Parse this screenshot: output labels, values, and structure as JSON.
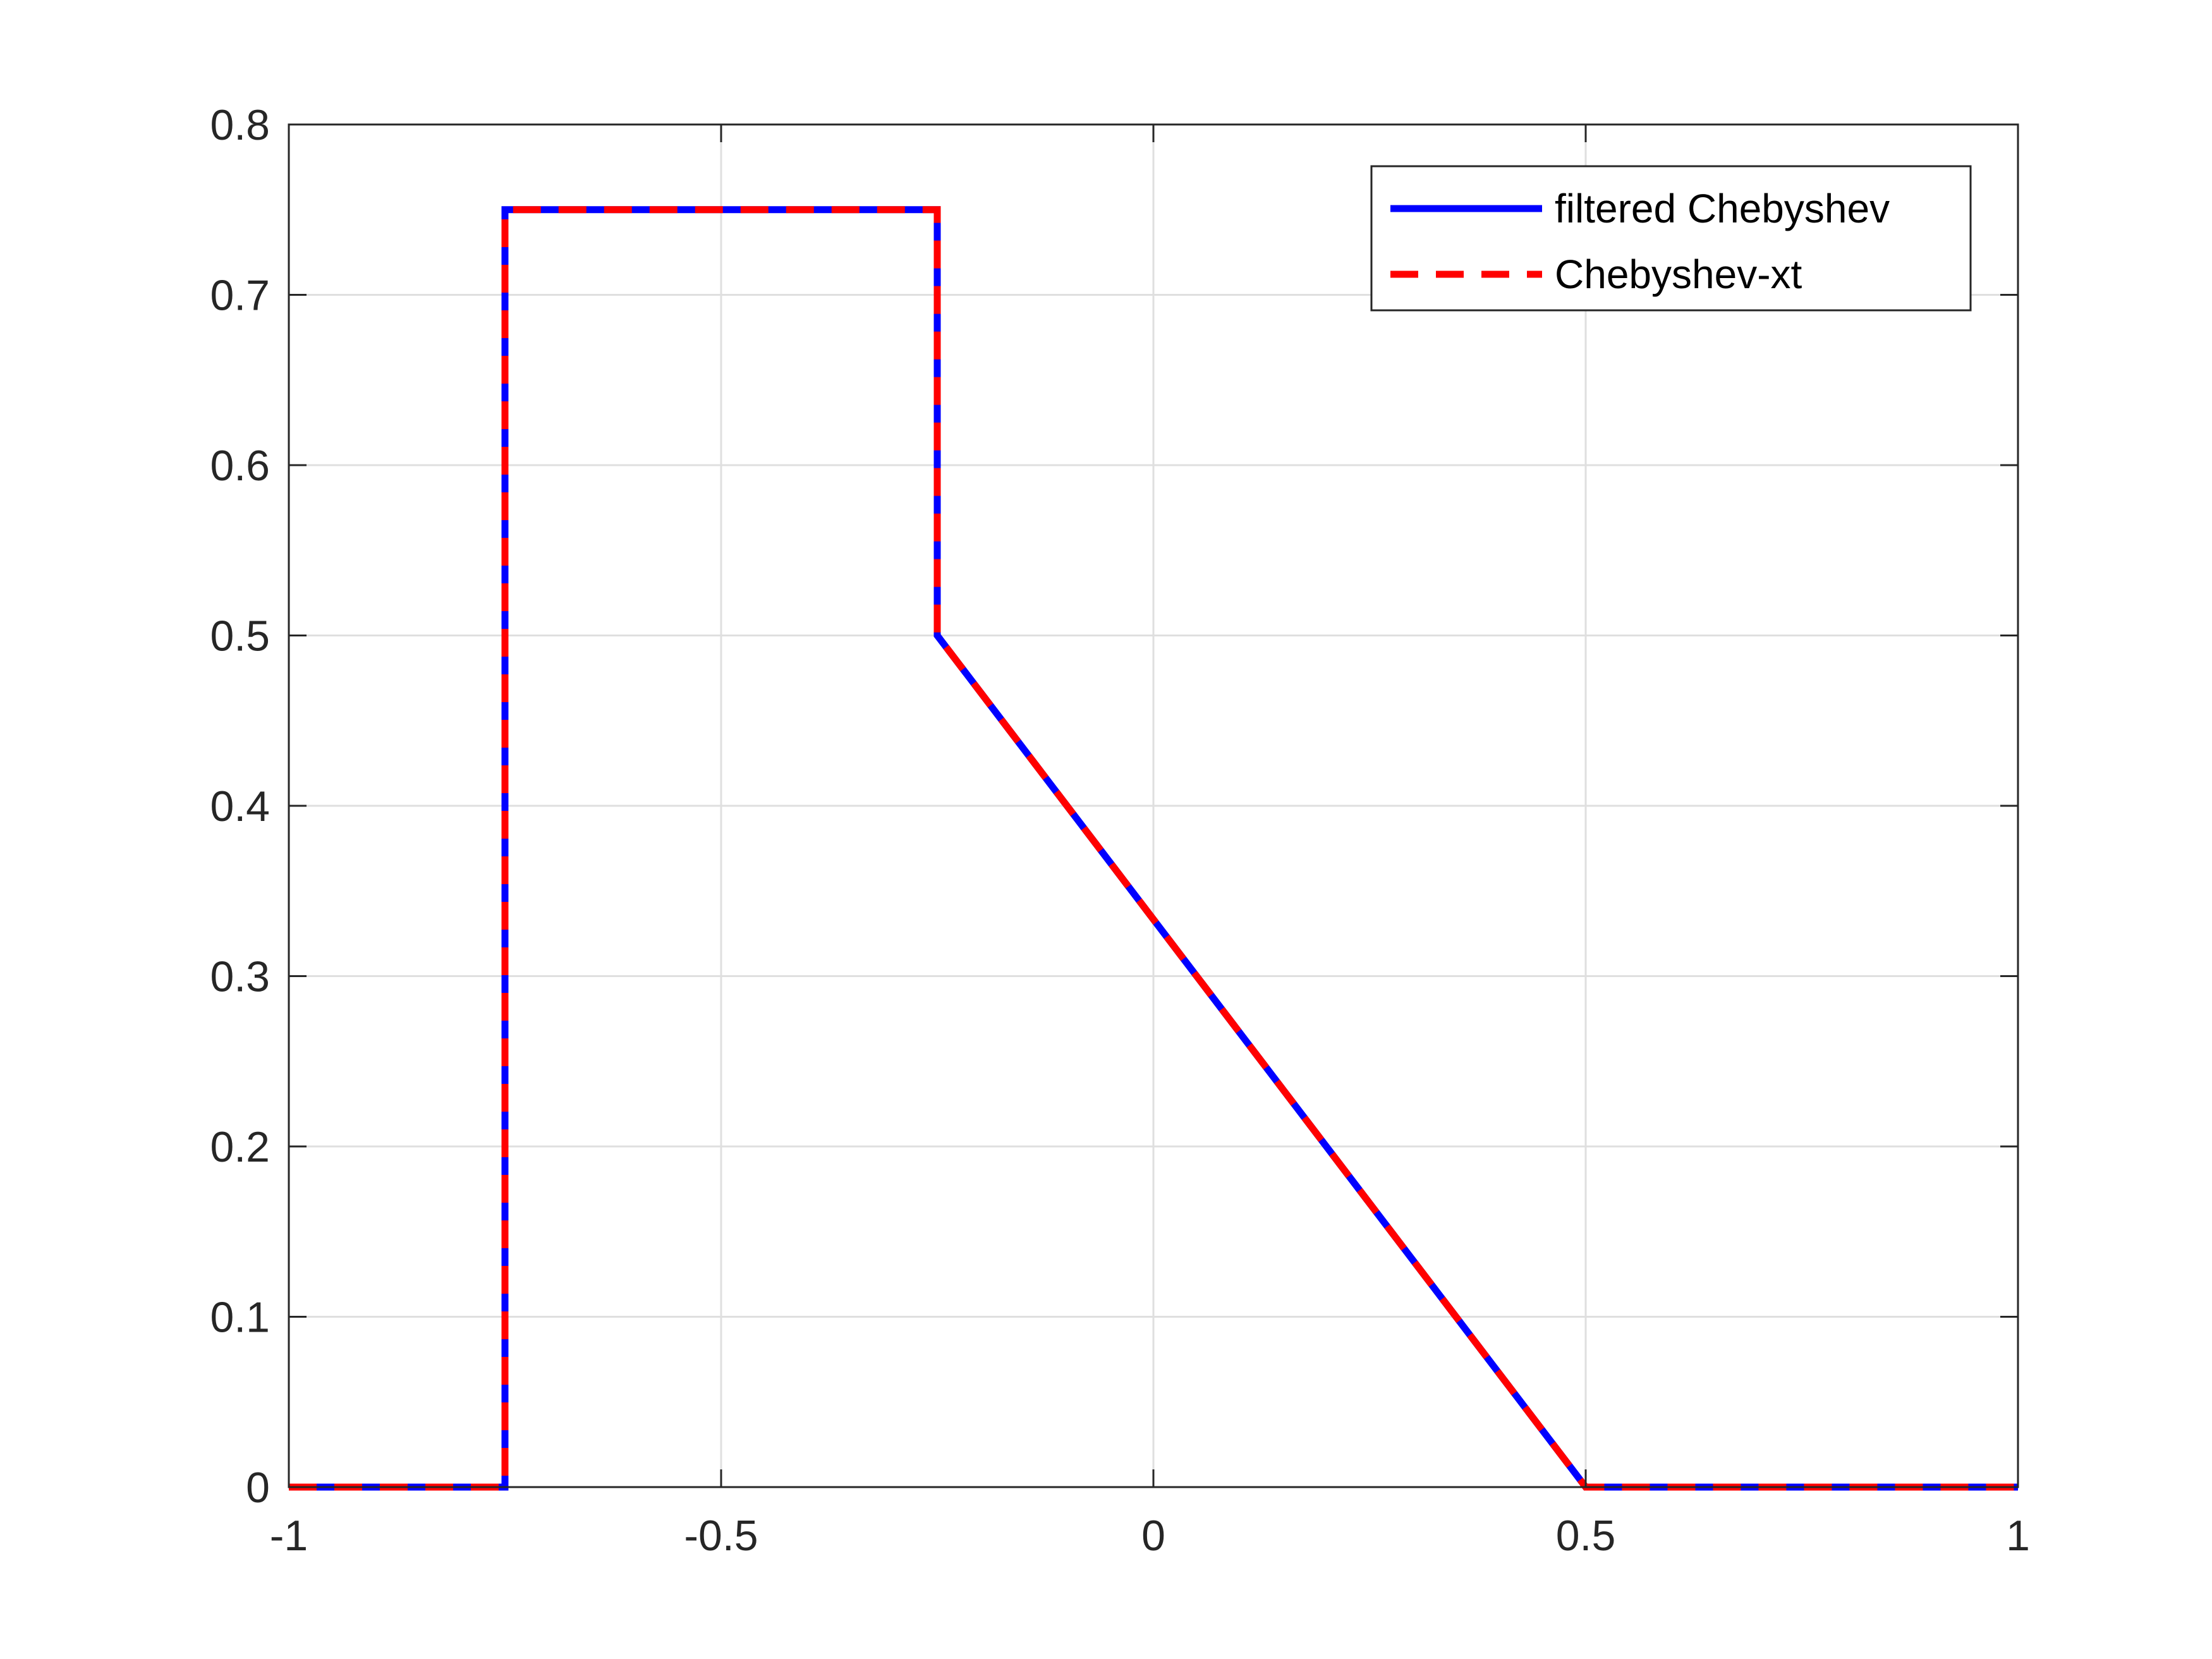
{
  "chart_data": {
    "type": "line",
    "title": "",
    "xlabel": "",
    "ylabel": "",
    "xlim": [
      -1,
      1
    ],
    "ylim": [
      0,
      0.8
    ],
    "xticks": [
      -1,
      -0.5,
      0,
      0.5,
      1
    ],
    "xtick_labels": [
      "-1",
      "-0.5",
      "0",
      "0.5",
      "1"
    ],
    "yticks": [
      0,
      0.1,
      0.2,
      0.3,
      0.4,
      0.5,
      0.6,
      0.7,
      0.8
    ],
    "ytick_labels": [
      "0",
      "0.1",
      "0.2",
      "0.3",
      "0.4",
      "0.5",
      "0.6",
      "0.7",
      "0.8"
    ],
    "grid": true,
    "legend_position": "top-right",
    "series": [
      {
        "name": "filtered Chebyshev",
        "color": "#0000ff",
        "style": "solid",
        "x": [
          -1,
          -0.75,
          -0.75,
          -0.25,
          -0.25,
          0.5,
          1
        ],
        "y": [
          0,
          0,
          0.75,
          0.75,
          0.5,
          0,
          0
        ]
      },
      {
        "name": "Chebyshev-xt",
        "color": "#ff0000",
        "style": "dashed",
        "x": [
          -1,
          -0.75,
          -0.75,
          -0.25,
          -0.25,
          0.5,
          1
        ],
        "y": [
          0,
          0,
          0.75,
          0.75,
          0.5,
          0,
          0
        ]
      }
    ]
  }
}
